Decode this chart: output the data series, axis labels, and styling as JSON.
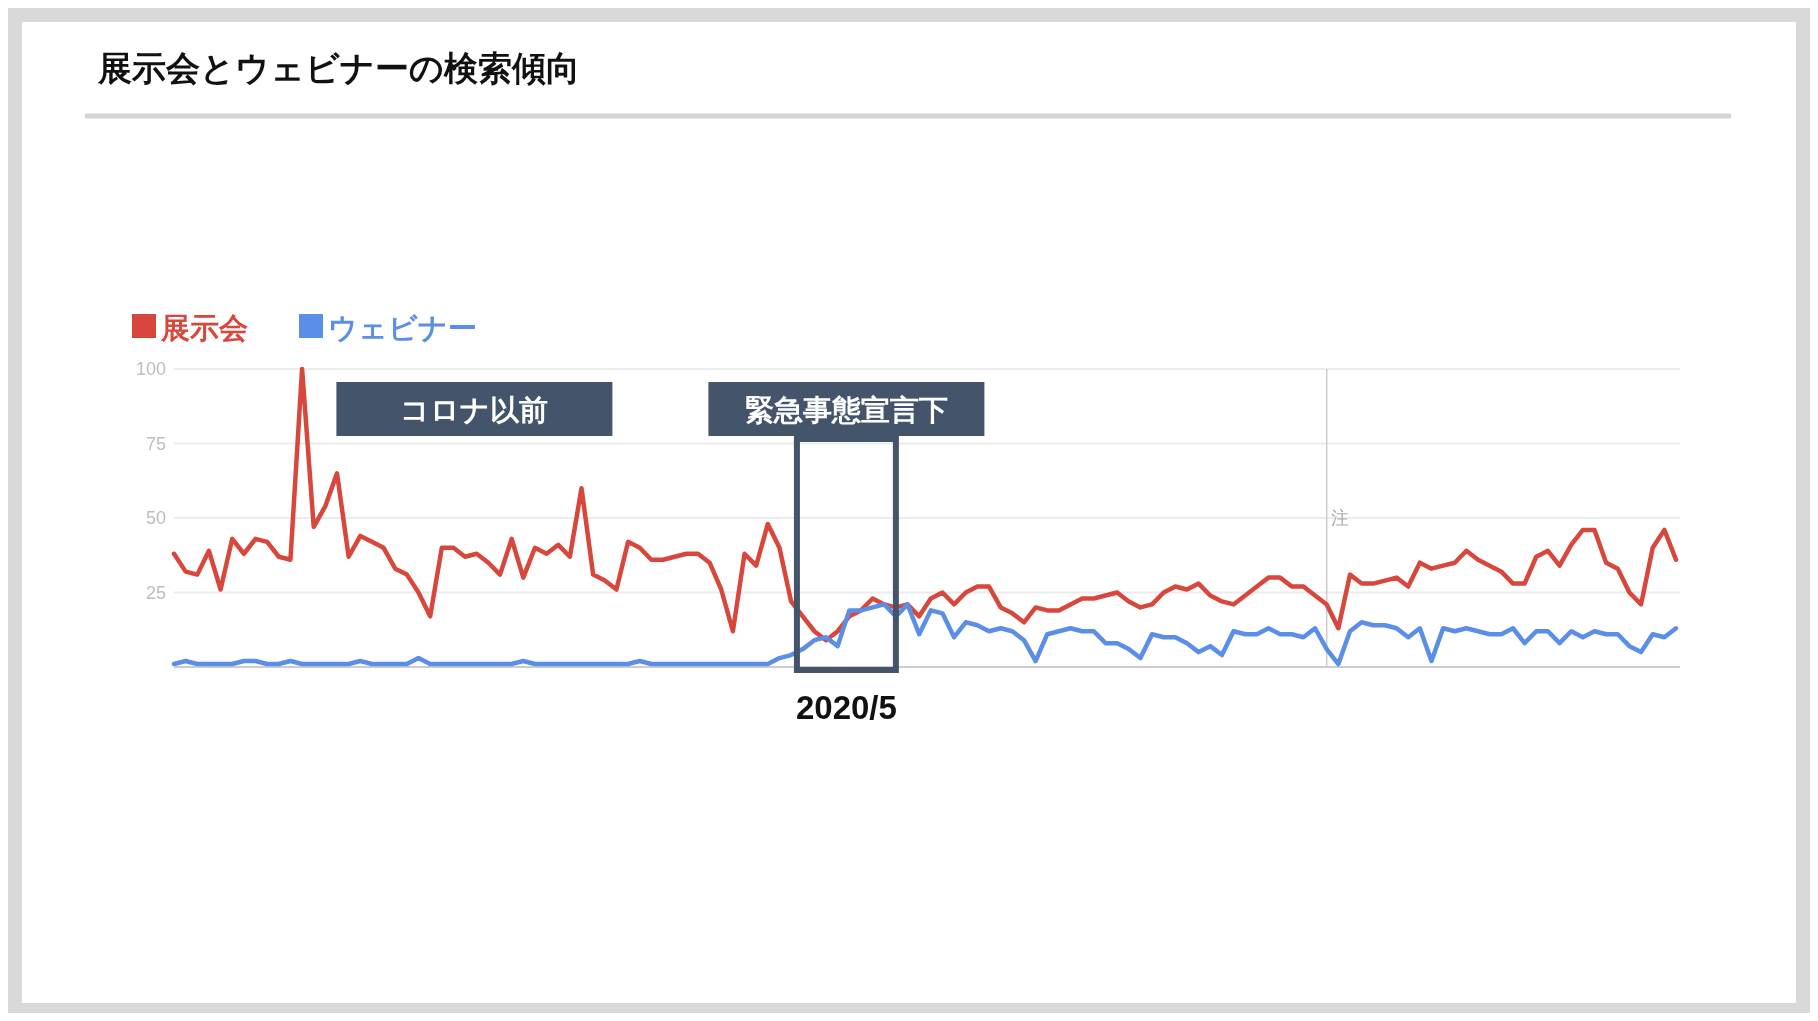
{
  "chart_data": {
    "type": "line",
    "title": "展示会とウェビナーの検索傾向",
    "categories": [
      null,
      null,
      null,
      null,
      null,
      null,
      null,
      null,
      null,
      null,
      null,
      null,
      null,
      null,
      null,
      null,
      null,
      null,
      null,
      null,
      null,
      null,
      null,
      null,
      null,
      null,
      null,
      null,
      null,
      null,
      null,
      null,
      null,
      null,
      null,
      null,
      null,
      null,
      null,
      null,
      null,
      null,
      null,
      null,
      null,
      null,
      null,
      null,
      null,
      null,
      null,
      null,
      null,
      null,
      null,
      null,
      null,
      null,
      null,
      null,
      null,
      null,
      null,
      null,
      null,
      null,
      null,
      null,
      null,
      null,
      null,
      null,
      null,
      null,
      null,
      null,
      null,
      null,
      null,
      null,
      null,
      null,
      null,
      null,
      null,
      null,
      null,
      null,
      null,
      null,
      null,
      null,
      null,
      null,
      null,
      null,
      null,
      null,
      null,
      null,
      null,
      null,
      null,
      null,
      null,
      null,
      null,
      null,
      null,
      null,
      null,
      null,
      null,
      null,
      null,
      null,
      null,
      null,
      null,
      null,
      null,
      null,
      null,
      null,
      null,
      null,
      null,
      null,
      null,
      null
    ],
    "series": [
      {
        "name": "展示会",
        "color": "#d8473c",
        "values": [
          38,
          32,
          31,
          39,
          26,
          43,
          38,
          43,
          42,
          37,
          36,
          100,
          47,
          54,
          65,
          37,
          44,
          42,
          40,
          33,
          31,
          25,
          17,
          40,
          40,
          37,
          38,
          35,
          31,
          43,
          30,
          40,
          38,
          41,
          37,
          60,
          31,
          29,
          26,
          42,
          40,
          36,
          36,
          37,
          38,
          38,
          35,
          26,
          12,
          38,
          34,
          48,
          40,
          22,
          17,
          12,
          9,
          12,
          17,
          19,
          23,
          21,
          20,
          21,
          17,
          23,
          25,
          21,
          25,
          27,
          27,
          20,
          18,
          15,
          20,
          19,
          19,
          21,
          23,
          23,
          24,
          25,
          22,
          20,
          21,
          25,
          27,
          26,
          28,
          24,
          22,
          21,
          24,
          27,
          30,
          30,
          27,
          27,
          24,
          21,
          13,
          31,
          28,
          28,
          29,
          30,
          27,
          35,
          33,
          34,
          35,
          39,
          36,
          34,
          32,
          28,
          28,
          37,
          39,
          34,
          41,
          46,
          46,
          35,
          33,
          25,
          21,
          40,
          46,
          36
        ]
      },
      {
        "name": "ウェビナー",
        "color": "#5b8ee6",
        "values": [
          1,
          2,
          1,
          1,
          1,
          1,
          2,
          2,
          1,
          1,
          2,
          1,
          1,
          1,
          1,
          1,
          2,
          1,
          1,
          1,
          1,
          3,
          1,
          1,
          1,
          1,
          1,
          1,
          1,
          1,
          2,
          1,
          1,
          1,
          1,
          1,
          1,
          1,
          1,
          1,
          2,
          1,
          1,
          1,
          1,
          1,
          1,
          1,
          1,
          1,
          1,
          1,
          3,
          4,
          6,
          9,
          10,
          7,
          19,
          19,
          20,
          21,
          17,
          21,
          11,
          19,
          18,
          10,
          15,
          14,
          12,
          13,
          12,
          9,
          2,
          11,
          12,
          13,
          12,
          12,
          8,
          8,
          6,
          3,
          11,
          10,
          10,
          8,
          5,
          7,
          4,
          12,
          11,
          11,
          13,
          11,
          11,
          10,
          13,
          6,
          1,
          12,
          15,
          14,
          14,
          13,
          10,
          13,
          2,
          13,
          12,
          13,
          12,
          11,
          11,
          13,
          8,
          12,
          12,
          8,
          12,
          10,
          12,
          11,
          11,
          7,
          5,
          11,
          10,
          13
        ]
      }
    ],
    "ylim": [
      0,
      100
    ],
    "yticks": [
      25,
      50,
      75,
      100
    ],
    "grid": "y",
    "legend": "top left",
    "tick_labels": "y",
    "annotations": [
      "コロナ以前",
      "緊急事態宣言下",
      "2020/5",
      "注"
    ]
  }
}
